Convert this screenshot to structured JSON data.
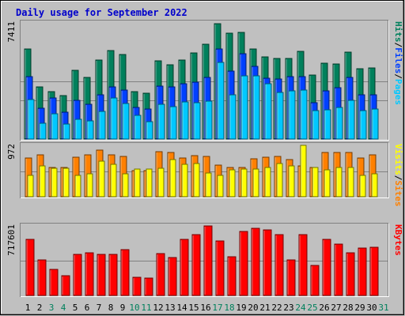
{
  "title": "Daily usage for September 2022",
  "colors": {
    "background": "#c0c0c0",
    "title": "#0000cc",
    "hits": "#00805c",
    "files": "#0040ff",
    "pages": "#00c8ff",
    "visits": "#ffff00",
    "sites": "#ff8000",
    "kbytes": "#ff0000",
    "weekend_label": "#00805c",
    "today_label": "#00805c"
  },
  "chart_data": {
    "type": "bar",
    "title": "Daily usage for September 2022",
    "categories": [
      "1",
      "2",
      "3",
      "4",
      "5",
      "6",
      "7",
      "8",
      "9",
      "10",
      "11",
      "12",
      "13",
      "14",
      "15",
      "16",
      "17",
      "18",
      "19",
      "20",
      "21",
      "22",
      "23",
      "24",
      "25",
      "26",
      "27",
      "28",
      "29",
      "30",
      "31"
    ],
    "weekend_days": [
      "3",
      "4",
      "10",
      "11",
      "17",
      "18",
      "24",
      "25",
      "31"
    ],
    "panels": [
      {
        "id": "hits-files-pages",
        "ymax_label": "7411",
        "ymax": 7411,
        "right_labels": [
          {
            "text": "Hits",
            "color": "#00805c"
          },
          {
            "text": "Files",
            "color": "#0040ff"
          },
          {
            "text": "Pages",
            "color": "#00c8ff"
          }
        ],
        "separator_color": "#000000",
        "series": [
          {
            "name": "Hits",
            "color": "#00805c",
            "values": [
              5730,
              3350,
              3050,
              2790,
              4370,
              3930,
              5050,
              5650,
              5390,
              3050,
              2900,
              4980,
              4750,
              5050,
              5520,
              6070,
              7360,
              6740,
              6800,
              5770,
              5230,
              5150,
              5140,
              5600,
              4100,
              4860,
              4800,
              5560,
              4490,
              4530,
              0
            ]
          },
          {
            "name": "Files",
            "color": "#0040ff",
            "values": [
              3980,
              1950,
              2640,
              1720,
              2490,
              2230,
              2800,
              3320,
              3150,
              2040,
              1910,
              3400,
              3350,
              3530,
              3630,
              3930,
              5740,
              4350,
              5470,
              4630,
              3870,
              3850,
              4000,
              3960,
              2330,
              3070,
              3290,
              3930,
              2840,
              2830,
              0
            ]
          },
          {
            "name": "Pages",
            "color": "#00c8ff",
            "values": [
              2510,
              1000,
              1630,
              950,
              1270,
              1160,
              1750,
              2630,
              2280,
              1520,
              1090,
              2240,
              2080,
              2360,
              2340,
              2430,
              4880,
              2820,
              4030,
              4010,
              3530,
              2970,
              3090,
              3140,
              1790,
              1890,
              2030,
              2470,
              1810,
              1930,
              0
            ]
          }
        ]
      },
      {
        "id": "visits-sites",
        "ymax_label": "972",
        "ymax": 972,
        "right_labels": [
          {
            "text": "Visits",
            "color": "#ffff00"
          },
          {
            "text": "Sites",
            "color": "#ff8000"
          }
        ],
        "separator_color": "#000000",
        "series": [
          {
            "name": "Sites",
            "color": "#ff8000",
            "values": [
              740,
              800,
              560,
              550,
              750,
              790,
              880,
              790,
              770,
              490,
              500,
              850,
              840,
              740,
              780,
              760,
              600,
              550,
              560,
              720,
              750,
              770,
              700,
              580,
              550,
              830,
              840,
              840,
              730,
              790,
              0
            ]
          },
          {
            "name": "Visits",
            "color": "#ffff00",
            "values": [
              400,
              580,
              540,
              540,
              410,
              430,
              680,
              620,
              430,
              530,
              520,
              540,
              710,
              610,
              630,
              450,
              400,
              510,
              530,
              520,
              550,
              630,
              580,
              1000,
              550,
              510,
              550,
              550,
              410,
              430,
              0
            ]
          }
        ]
      },
      {
        "id": "kbytes",
        "ymax_label": "717601",
        "ymax": 717601,
        "right_labels": [
          {
            "text": "KBytes",
            "color": "#ff0000"
          }
        ],
        "series": [
          {
            "name": "KBytes",
            "color": "#ff0000",
            "values": [
              580000,
              370000,
              270000,
              200000,
              420000,
              440000,
              420000,
              420000,
              470000,
              190000,
              180000,
              430000,
              390000,
              580000,
              630000,
              730000,
              560000,
              400000,
              660000,
              690000,
              680000,
              630000,
              370000,
              630000,
              310000,
              580000,
              530000,
              440000,
              490000,
              500000,
              0
            ]
          }
        ]
      }
    ]
  }
}
